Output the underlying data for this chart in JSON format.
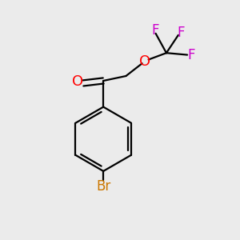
{
  "bg_color": "#ebebeb",
  "bond_color": "#000000",
  "O_color": "#ff0000",
  "F_color": "#cc00cc",
  "Br_color": "#cc7700",
  "figsize": [
    3.0,
    3.0
  ],
  "dpi": 100,
  "xlim": [
    0,
    10
  ],
  "ylim": [
    0,
    10
  ]
}
